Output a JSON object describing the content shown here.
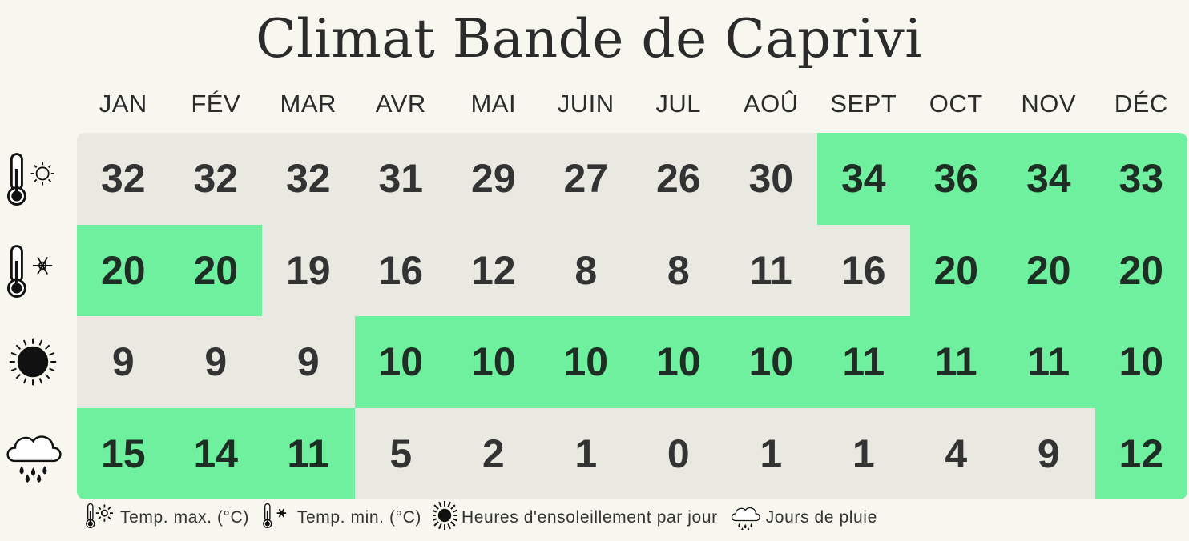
{
  "chart_data": {
    "type": "table",
    "title": "Climat Bande de Caprivi",
    "categories": [
      "JAN",
      "FÉV",
      "MAR",
      "AVR",
      "MAI",
      "JUIN",
      "JUL",
      "AOÛ",
      "SEPT",
      "OCT",
      "NOV",
      "DÉC"
    ],
    "series": [
      {
        "name": "Temp. max. (°C)",
        "icon": "thermometer-sun-icon",
        "values": [
          32,
          32,
          32,
          31,
          29,
          27,
          26,
          30,
          34,
          36,
          34,
          33
        ],
        "highlighted": [
          false,
          false,
          false,
          false,
          false,
          false,
          false,
          false,
          true,
          true,
          true,
          true
        ]
      },
      {
        "name": "Temp. min. (°C)",
        "icon": "thermometer-snowflake-icon",
        "values": [
          20,
          20,
          19,
          16,
          12,
          8,
          8,
          11,
          16,
          20,
          20,
          20
        ],
        "highlighted": [
          true,
          true,
          false,
          false,
          false,
          false,
          false,
          false,
          false,
          true,
          true,
          true
        ]
      },
      {
        "name": "Heures d'ensoleillement par jour",
        "icon": "sun-icon",
        "values": [
          9,
          9,
          9,
          10,
          10,
          10,
          10,
          10,
          11,
          11,
          11,
          10
        ],
        "highlighted": [
          false,
          false,
          false,
          true,
          true,
          true,
          true,
          true,
          true,
          true,
          true,
          true
        ]
      },
      {
        "name": "Jours de pluie",
        "icon": "rain-cloud-icon",
        "values": [
          15,
          14,
          11,
          5,
          2,
          1,
          0,
          1,
          1,
          4,
          9,
          12
        ],
        "highlighted": [
          true,
          true,
          true,
          false,
          false,
          false,
          false,
          false,
          false,
          false,
          false,
          true
        ]
      }
    ],
    "colors": {
      "highlight": "#6ff09f",
      "base": "#e9e8e1",
      "background": "#f8f7ef"
    }
  }
}
